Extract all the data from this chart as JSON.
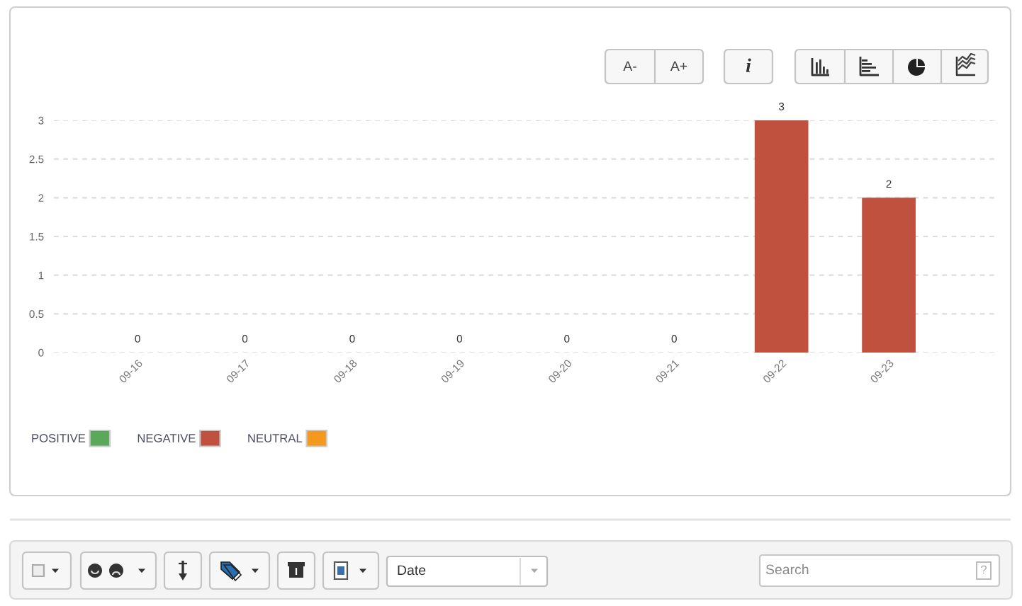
{
  "chart_data": {
    "type": "bar",
    "categories": [
      "09-16",
      "09-17",
      "09-18",
      "09-19",
      "09-20",
      "09-21",
      "09-22",
      "09-23"
    ],
    "series": [
      {
        "name": "POSITIVE",
        "color": "#5aa85a",
        "values": [
          0,
          0,
          0,
          0,
          0,
          0,
          0,
          0
        ]
      },
      {
        "name": "NEGATIVE",
        "color": "#c1513f",
        "values": [
          0,
          0,
          0,
          0,
          0,
          0,
          3,
          2
        ]
      },
      {
        "name": "NEUTRAL",
        "color": "#f39a1e",
        "values": [
          0,
          0,
          0,
          0,
          0,
          0,
          0,
          0
        ]
      }
    ],
    "stacked": true,
    "totals": [
      "0",
      "0",
      "0",
      "0",
      "0",
      "0",
      "3",
      "2"
    ],
    "ylim": [
      0,
      3
    ],
    "yticks": [
      0,
      0.5,
      1,
      1.5,
      2,
      2.5,
      3
    ],
    "grid": "y",
    "legend": "bottom left",
    "annotations": [
      "A-",
      "A+",
      "i",
      "Date",
      "Search",
      "?"
    ]
  }
}
